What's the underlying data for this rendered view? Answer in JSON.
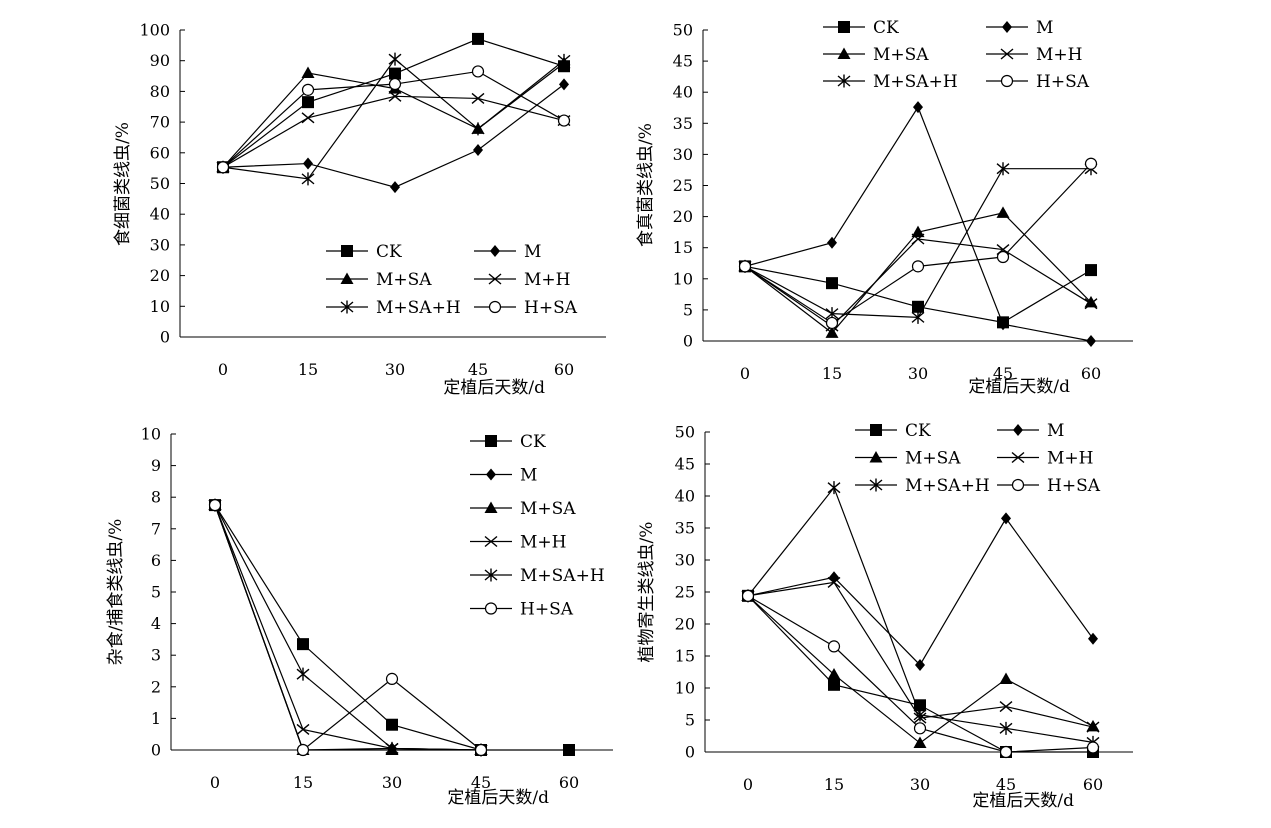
{
  "figure": {
    "x_tick_labels": [
      "0",
      "15",
      "30",
      "45",
      "60"
    ],
    "series_names": [
      "CK",
      "M",
      "M+SA",
      "M+H",
      "M+SA+H",
      "H+SA"
    ]
  },
  "chart_data": [
    {
      "type": "line",
      "ylabel": "食细菌类线虫/%",
      "xlabel": "定植后天数/d",
      "x": [
        0,
        15,
        30,
        45,
        60
      ],
      "ylim": [
        0,
        100
      ],
      "yticks": [
        "0",
        "10",
        "20",
        "30",
        "40",
        "50",
        "60",
        "70",
        "80",
        "90",
        "100"
      ],
      "legend_position": "bottom-right, 3 rows × 2 columns",
      "series": [
        {
          "name": "CK",
          "marker": "square",
          "values": [
            55.3,
            76.5,
            85.8,
            97.1,
            88.2
          ]
        },
        {
          "name": "M",
          "marker": "diamond",
          "values": [
            55.3,
            56.5,
            48.8,
            60.9,
            82.3
          ]
        },
        {
          "name": "M+SA",
          "marker": "triangle",
          "values": [
            55.3,
            86.0,
            80.9,
            67.8,
            89.2
          ]
        },
        {
          "name": "M+H",
          "marker": "x",
          "values": [
            55.3,
            71.4,
            78.4,
            77.7,
            70.5
          ]
        },
        {
          "name": "M+SA+H",
          "marker": "asterisk",
          "values": [
            55.3,
            51.5,
            90.5,
            67.8,
            90.1
          ]
        },
        {
          "name": "H+SA",
          "marker": "circle",
          "values": [
            55.3,
            80.5,
            82.4,
            86.5,
            70.5
          ]
        }
      ]
    },
    {
      "type": "line",
      "ylabel": "食真菌类线虫/%",
      "xlabel": "定植后天数/d",
      "x": [
        0,
        15,
        30,
        45,
        60
      ],
      "ylim": [
        0,
        50
      ],
      "yticks": [
        "0",
        "5",
        "10",
        "15",
        "20",
        "25",
        "30",
        "35",
        "40",
        "45",
        "50"
      ],
      "legend_position": "top-left, 3 rows × 2 columns",
      "series": [
        {
          "name": "CK",
          "marker": "square",
          "values": [
            12.0,
            9.3,
            5.5,
            3.0,
            11.4
          ]
        },
        {
          "name": "M",
          "marker": "diamond",
          "values": [
            12.0,
            15.8,
            37.6,
            2.7,
            0.0
          ]
        },
        {
          "name": "M+SA",
          "marker": "triangle",
          "values": [
            12.0,
            1.3,
            17.5,
            20.6,
            6.2
          ]
        },
        {
          "name": "M+H",
          "marker": "x",
          "values": [
            12.0,
            2.4,
            16.4,
            14.7,
            6.0
          ]
        },
        {
          "name": "M+SA+H",
          "marker": "asterisk",
          "values": [
            12.0,
            4.4,
            3.8,
            27.7,
            27.7
          ]
        },
        {
          "name": "H+SA",
          "marker": "circle",
          "values": [
            12.0,
            2.9,
            12.0,
            13.5,
            28.5
          ]
        }
      ]
    },
    {
      "type": "line",
      "ylabel": "杂食/捕食类线虫/%",
      "xlabel": "定植后天数/d",
      "x": [
        0,
        15,
        30,
        45,
        60
      ],
      "ylim": [
        0,
        10
      ],
      "yticks": [
        "0",
        "1",
        "2",
        "3",
        "4",
        "5",
        "6",
        "7",
        "8",
        "9",
        "10"
      ],
      "legend_position": "right, single column",
      "series": [
        {
          "name": "CK",
          "marker": "square",
          "values": [
            7.75,
            3.35,
            0.8,
            0.0,
            0.0
          ]
        },
        {
          "name": "M",
          "marker": "diamond",
          "values": [
            7.75,
            0.0,
            0.05,
            0.0,
            null
          ]
        },
        {
          "name": "M+SA",
          "marker": "triangle",
          "values": [
            7.75,
            0.0,
            0.0,
            0.0,
            null
          ]
        },
        {
          "name": "M+H",
          "marker": "x",
          "values": [
            7.75,
            0.65,
            0.05,
            0.0,
            null
          ]
        },
        {
          "name": "M+SA+H",
          "marker": "asterisk",
          "values": [
            7.75,
            2.4,
            0.05,
            0.0,
            null
          ]
        },
        {
          "name": "H+SA",
          "marker": "circle",
          "values": [
            7.75,
            0.0,
            2.25,
            0.0,
            null
          ]
        }
      ]
    },
    {
      "type": "line",
      "ylabel": "植物寄生类线虫/%",
      "xlabel": "定植后天数/d",
      "x": [
        0,
        15,
        30,
        45,
        60
      ],
      "ylim": [
        0,
        50
      ],
      "yticks": [
        "0",
        "5",
        "10",
        "15",
        "20",
        "25",
        "30",
        "35",
        "40",
        "45",
        "50"
      ],
      "legend_position": "top, 3 rows × 2 columns",
      "series": [
        {
          "name": "CK",
          "marker": "square",
          "values": [
            24.4,
            10.5,
            7.3,
            0.0,
            0.0
          ]
        },
        {
          "name": "M",
          "marker": "diamond",
          "values": [
            24.4,
            27.3,
            13.6,
            36.5,
            17.7
          ]
        },
        {
          "name": "M+SA",
          "marker": "triangle",
          "values": [
            24.4,
            12.1,
            1.4,
            11.4,
            4.0
          ]
        },
        {
          "name": "M+H",
          "marker": "x",
          "values": [
            24.4,
            26.5,
            5.3,
            7.1,
            3.9
          ]
        },
        {
          "name": "M+SA+H",
          "marker": "asterisk",
          "values": [
            24.4,
            41.3,
            5.8,
            3.7,
            1.5
          ]
        },
        {
          "name": "H+SA",
          "marker": "circle",
          "values": [
            24.4,
            16.5,
            3.7,
            0.0,
            0.7
          ]
        }
      ]
    }
  ]
}
